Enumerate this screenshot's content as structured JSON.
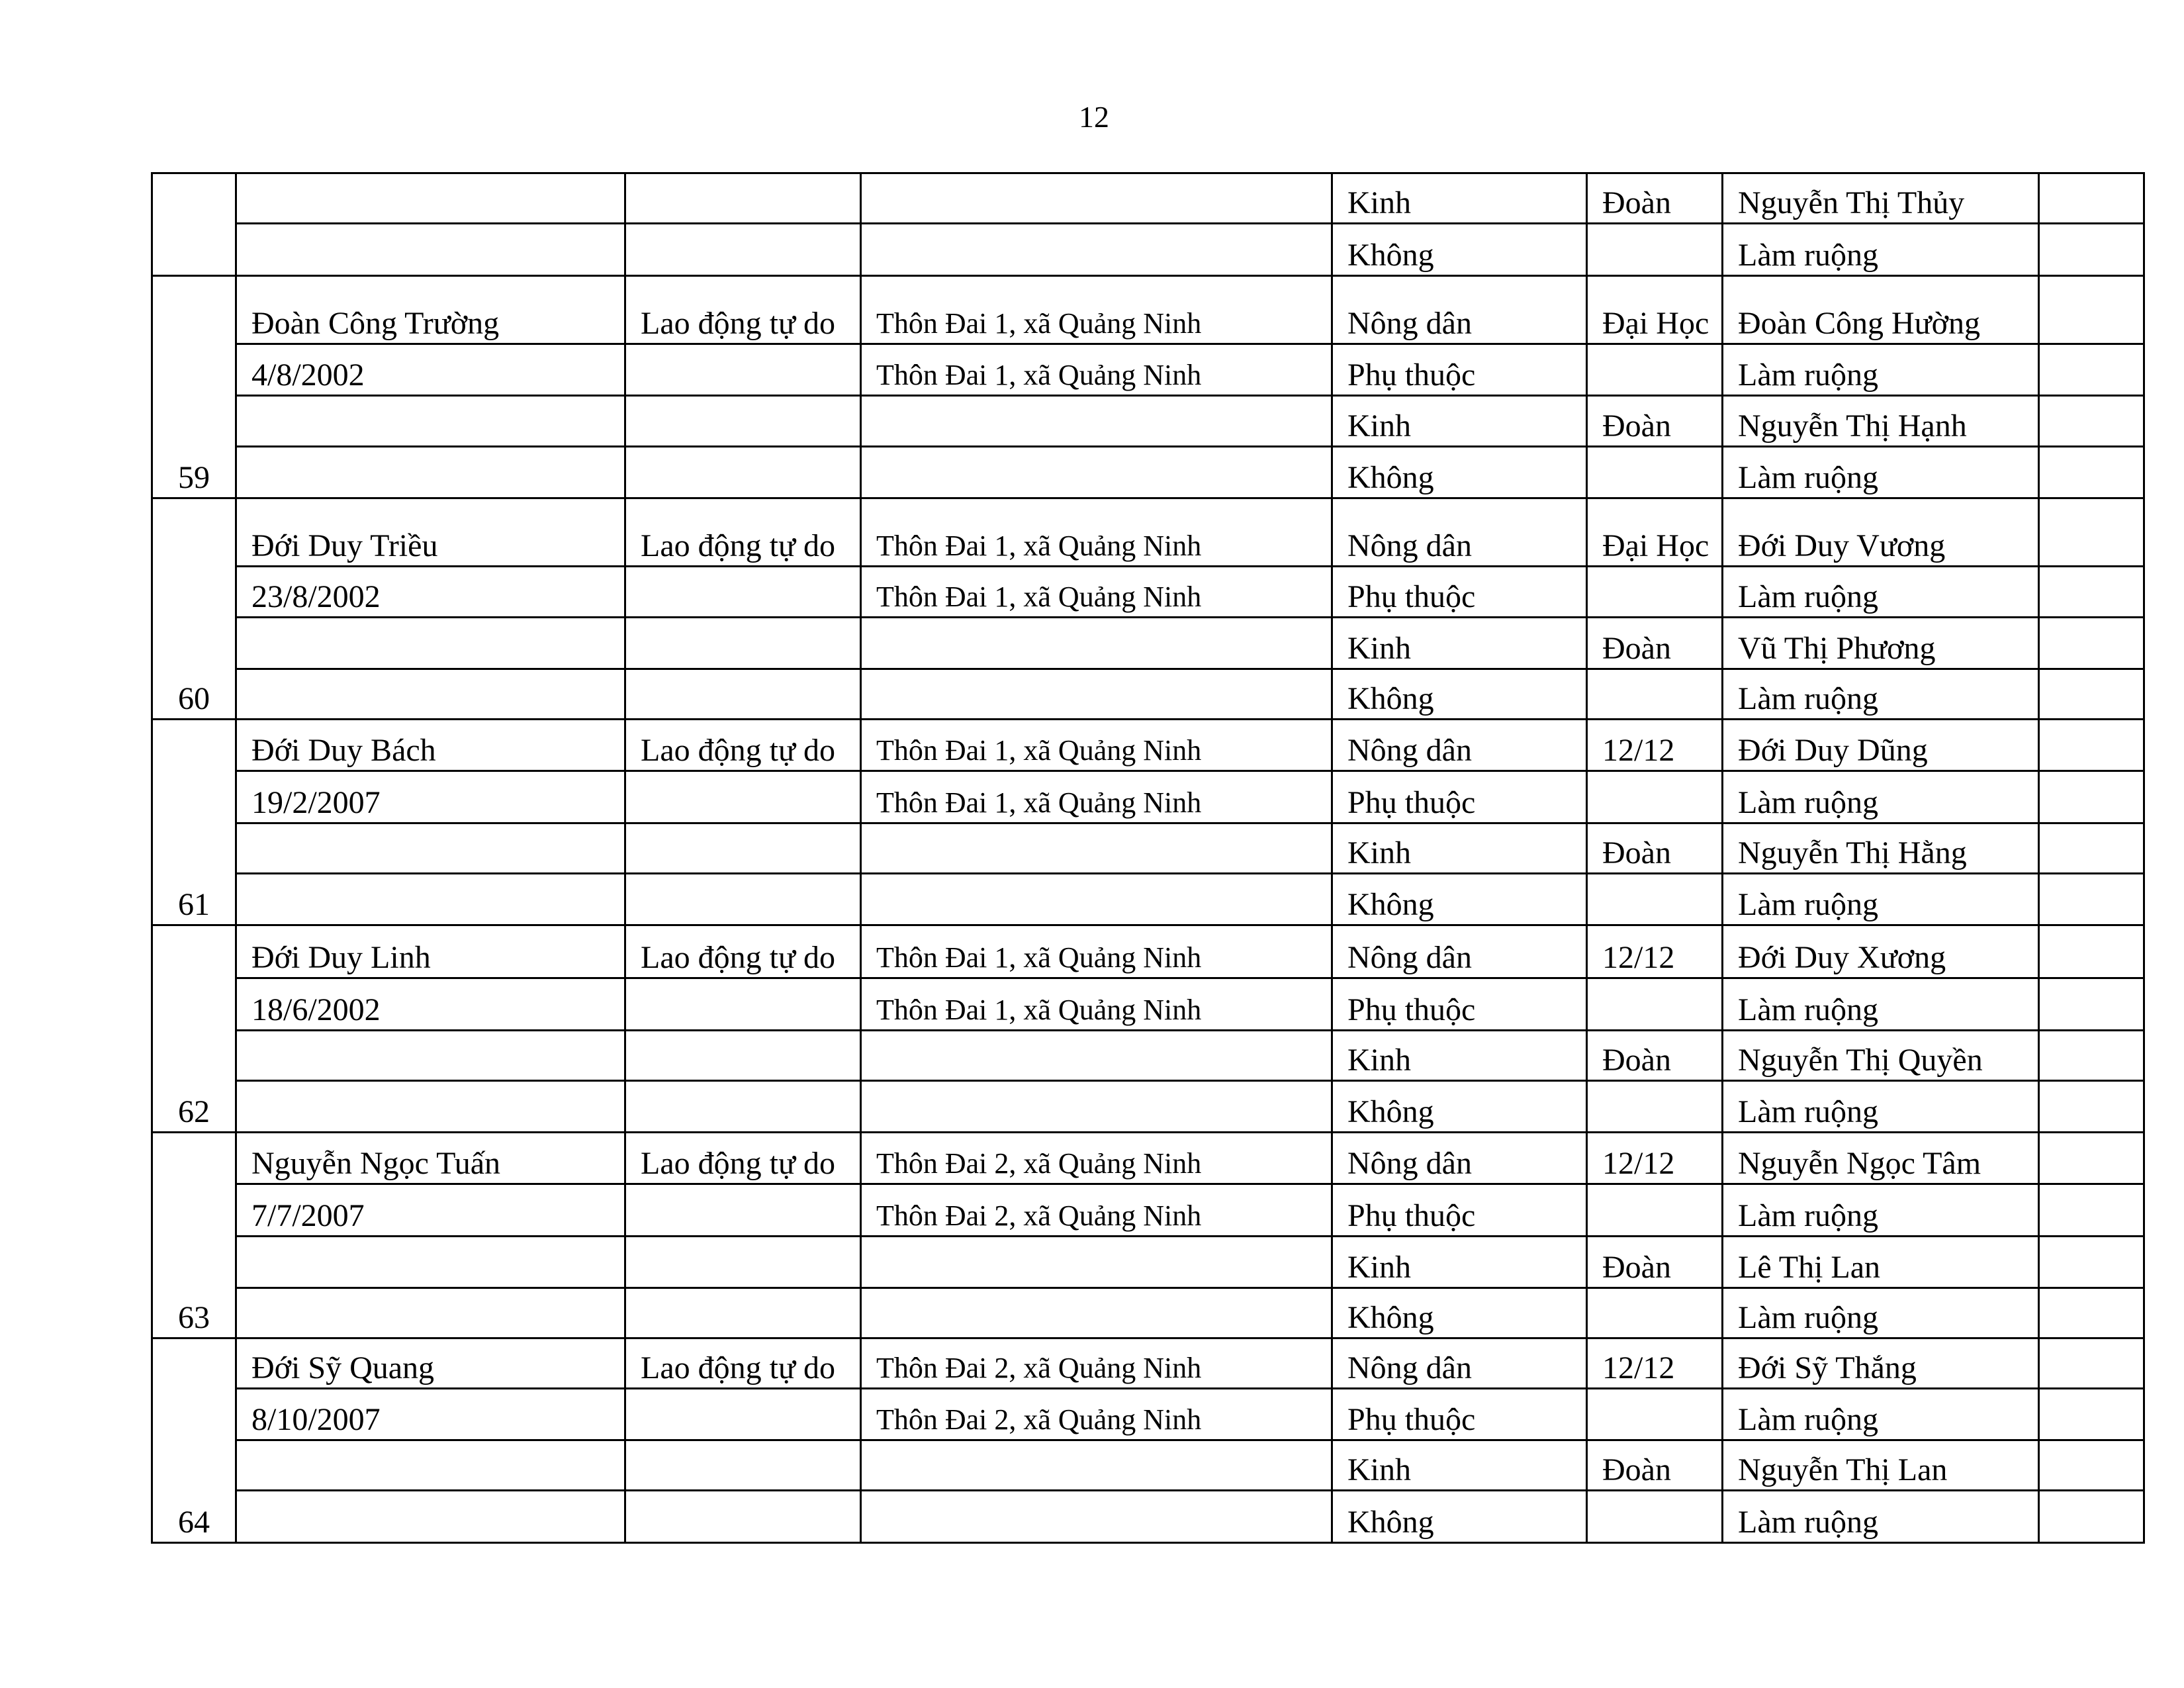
{
  "page_number": "12",
  "groups": [
    {
      "number": "",
      "rows": [
        [
          "",
          "",
          "",
          "Kinh",
          "Đoàn",
          "Nguyễn Thị Thủy",
          ""
        ],
        [
          "",
          "",
          "",
          "Không",
          "",
          "Làm ruộng",
          ""
        ]
      ]
    },
    {
      "number": "59",
      "rows": [
        [
          "Đoàn Công Trường",
          "Lao động tự do",
          "Thôn Đai 1, xã Quảng Ninh",
          "Nông dân",
          "Đại Học",
          "Đoàn Công Hường",
          ""
        ],
        [
          "4/8/2002",
          "",
          "Thôn Đai 1, xã Quảng Ninh",
          "Phụ thuộc",
          "",
          "Làm ruộng",
          ""
        ],
        [
          "",
          "",
          "",
          "Kinh",
          "Đoàn",
          "Nguyễn Thị Hạnh",
          ""
        ],
        [
          "",
          "",
          "",
          "Không",
          "",
          "Làm ruộng",
          ""
        ]
      ]
    },
    {
      "number": "60",
      "rows": [
        [
          "Đới Duy Triều",
          "Lao động tự do",
          "Thôn Đai 1, xã Quảng Ninh",
          "Nông dân",
          "Đại Học",
          "Đới Duy Vương",
          ""
        ],
        [
          "23/8/2002",
          "",
          "Thôn Đai 1, xã Quảng Ninh",
          "Phụ thuộc",
          "",
          "Làm ruộng",
          ""
        ],
        [
          "",
          "",
          "",
          "Kinh",
          "Đoàn",
          "Vũ Thị Phương",
          ""
        ],
        [
          "",
          "",
          "",
          "Không",
          "",
          "Làm ruộng",
          ""
        ]
      ]
    },
    {
      "number": "61",
      "rows": [
        [
          "Đới Duy Bách",
          "Lao động tự do",
          "Thôn Đai 1, xã Quảng Ninh",
          "Nông dân",
          "12/12",
          "Đới Duy Dũng",
          ""
        ],
        [
          "19/2/2007",
          "",
          "Thôn Đai 1, xã Quảng Ninh",
          "Phụ thuộc",
          "",
          "Làm ruộng",
          ""
        ],
        [
          "",
          "",
          "",
          "Kinh",
          "Đoàn",
          "Nguyễn Thị Hằng",
          ""
        ],
        [
          "",
          "",
          "",
          "Không",
          "",
          "Làm ruộng",
          ""
        ]
      ]
    },
    {
      "number": "62",
      "rows": [
        [
          "Đới Duy Linh",
          "Lao động tự do",
          "Thôn Đai 1, xã Quảng Ninh",
          "Nông dân",
          "12/12",
          "Đới Duy Xương",
          ""
        ],
        [
          "18/6/2002",
          "",
          "Thôn Đai 1, xã Quảng Ninh",
          "Phụ thuộc",
          "",
          "Làm ruộng",
          ""
        ],
        [
          "",
          "",
          "",
          "Kinh",
          "Đoàn",
          "Nguyễn Thị Quyền",
          ""
        ],
        [
          "",
          "",
          "",
          "Không",
          "",
          "Làm ruộng",
          ""
        ]
      ]
    },
    {
      "number": "63",
      "rows": [
        [
          "Nguyễn Ngọc Tuấn",
          "Lao động tự do",
          "Thôn Đai 2, xã Quảng Ninh",
          "Nông dân",
          "12/12",
          "Nguyễn Ngọc Tâm",
          ""
        ],
        [
          "7/7/2007",
          "",
          "Thôn Đai 2, xã Quảng Ninh",
          "Phụ thuộc",
          "",
          "Làm ruộng",
          ""
        ],
        [
          "",
          "",
          "",
          "Kinh",
          "Đoàn",
          "Lê Thị Lan",
          ""
        ],
        [
          "",
          "",
          "",
          "Không",
          "",
          "Làm ruộng",
          ""
        ]
      ]
    },
    {
      "number": "64",
      "rows": [
        [
          "Đới Sỹ Quang",
          "Lao động tự do",
          "Thôn Đai 2, xã Quảng Ninh",
          "Nông dân",
          "12/12",
          "Đới Sỹ Thắng",
          ""
        ],
        [
          "8/10/2007",
          "",
          "Thôn Đai 2, xã Quảng Ninh",
          "Phụ thuộc",
          "",
          "Làm ruộng",
          ""
        ],
        [
          "",
          "",
          "",
          "Kinh",
          "Đoàn",
          "Nguyễn Thị Lan",
          ""
        ],
        [
          "",
          "",
          "",
          "Không",
          "",
          "Làm ruộng",
          ""
        ]
      ]
    }
  ]
}
